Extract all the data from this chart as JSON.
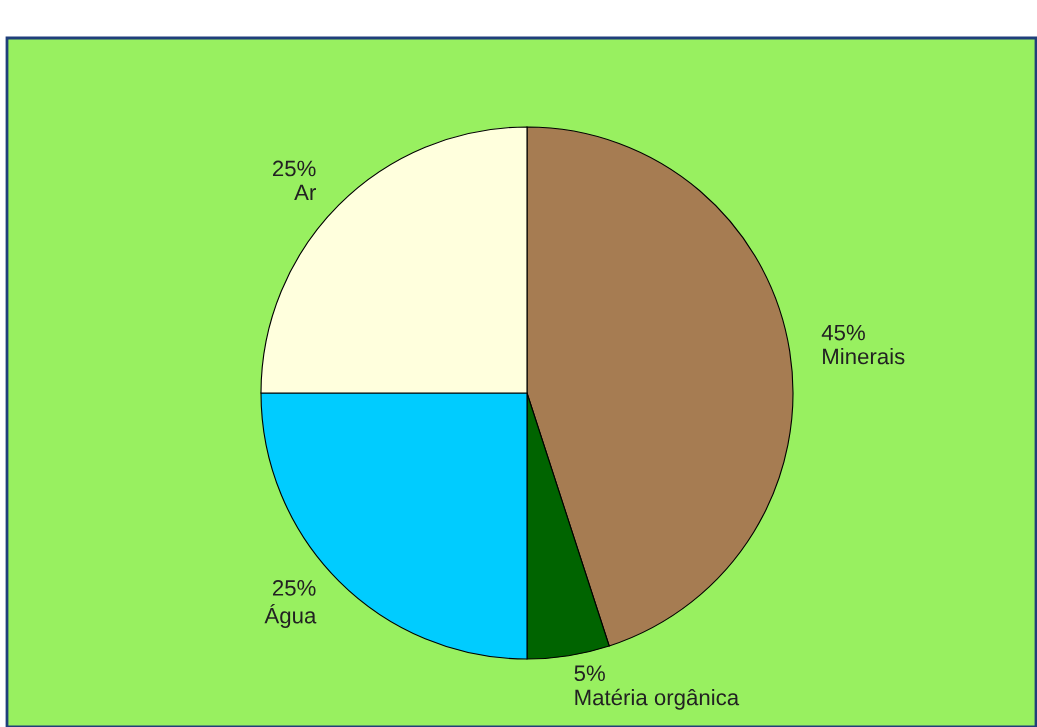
{
  "chart_data": {
    "type": "pie",
    "categories": [
      "Minerais",
      "Matéria orgânica",
      "Água",
      "Ar"
    ],
    "values": [
      45,
      5,
      25,
      25
    ],
    "colors": [
      "#a67c52",
      "#006400",
      "#00ccff",
      "#ffffdd"
    ],
    "value_labels": [
      "45%",
      "5%",
      "25%",
      "25%"
    ],
    "legend": false
  }
}
